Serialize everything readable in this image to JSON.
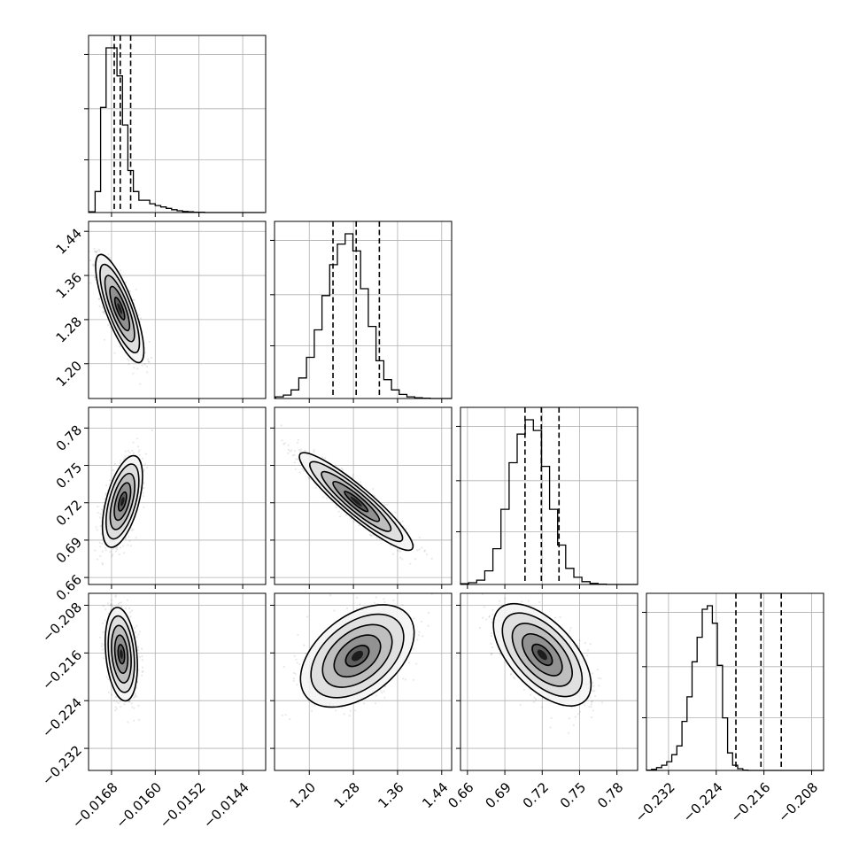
{
  "chart_data": {
    "type": "scatter",
    "kind": "corner-plot",
    "grid": true,
    "parameters": [
      {
        "ticks": [
          -0.0168,
          -0.016,
          -0.0152,
          -0.0144
        ],
        "ticklabels": [
          "−0.0168",
          "−0.0160",
          "−0.0152",
          "−0.0144"
        ],
        "range": [
          -0.01722,
          -0.01398
        ]
      },
      {
        "ticks": [
          1.2,
          1.28,
          1.36,
          1.44
        ],
        "ticklabels": [
          "1.20",
          "1.28",
          "1.36",
          "1.44"
        ],
        "range": [
          1.137,
          1.458
        ]
      },
      {
        "ticks": [
          0.66,
          0.69,
          0.72,
          0.75,
          0.78
        ],
        "ticklabels": [
          "0.66",
          "0.69",
          "0.72",
          "0.75",
          "0.78"
        ],
        "range": [
          0.6544,
          0.7966
        ]
      },
      {
        "ticks": [
          -0.232,
          -0.224,
          -0.216,
          -0.208
        ],
        "ticklabels": [
          "−0.232",
          "−0.224",
          "−0.216",
          "−0.208"
        ],
        "range": [
          -0.2357,
          -0.206
        ]
      }
    ],
    "histograms": [
      {
        "quantiles": [
          -0.01675,
          -0.01664,
          -0.01645
        ],
        "bins_start": -0.0172,
        "bin_width": 0.0001,
        "counts": [
          2,
          60,
          300,
          470,
          470,
          390,
          250,
          120,
          60,
          35,
          35,
          25,
          20,
          16,
          12,
          8,
          5,
          3,
          2,
          1,
          1,
          0,
          0,
          0,
          0,
          0,
          0,
          0,
          0,
          0,
          0,
          0
        ]
      },
      {
        "quantiles": [
          1.243,
          1.285,
          1.327
        ],
        "bins_start": 1.139,
        "bin_width": 0.014,
        "counts": [
          5,
          10,
          25,
          60,
          120,
          200,
          300,
          390,
          450,
          480,
          430,
          320,
          210,
          110,
          55,
          25,
          12,
          5,
          2,
          1,
          0,
          0,
          0
        ]
      },
      {
        "quantiles": [
          0.7062,
          0.7193,
          0.7335
        ],
        "bins_start": 0.6544,
        "bin_width": 0.0065,
        "counts": [
          2,
          5,
          12,
          38,
          100,
          210,
          340,
          420,
          460,
          430,
          330,
          210,
          110,
          45,
          20,
          8,
          3,
          1,
          0,
          0,
          0,
          0
        ]
      },
      {
        "quantiles": [
          -0.2207,
          -0.2165,
          -0.2131
        ],
        "bins_start": -0.2357,
        "bin_width": 0.00085,
        "counts": [
          1,
          3,
          8,
          15,
          25,
          45,
          70,
          140,
          210,
          310,
          380,
          460,
          470,
          420,
          300,
          150,
          50,
          15,
          5,
          1,
          0,
          0,
          0,
          0,
          0,
          0,
          0,
          0,
          0,
          0,
          0,
          0,
          0,
          0,
          0
        ]
      }
    ],
    "pairs": [
      {
        "x": 0,
        "y": 1,
        "mean": [
          -0.01665,
          1.3
        ],
        "sd": [
          0.00018,
          0.04
        ],
        "rho": -0.78,
        "n": 1800
      },
      {
        "x": 0,
        "y": 2,
        "mean": [
          -0.0166,
          0.721
        ],
        "sd": [
          0.00015,
          0.015
        ],
        "rho": 0.55,
        "n": 1800
      },
      {
        "x": 1,
        "y": 2,
        "mean": [
          1.285,
          0.721
        ],
        "sd": [
          0.042,
          0.016
        ],
        "rho": -0.92,
        "n": 1800
      },
      {
        "x": 0,
        "y": 3,
        "mean": [
          -0.01662,
          -0.2162
        ],
        "sd": [
          0.00012,
          0.0032
        ],
        "rho": -0.25,
        "n": 1800
      },
      {
        "x": 1,
        "y": 3,
        "mean": [
          1.287,
          -0.2165
        ],
        "sd": [
          0.042,
          0.0035
        ],
        "rho": 0.45,
        "n": 1800
      },
      {
        "x": 2,
        "y": 3,
        "mean": [
          0.72,
          -0.2163
        ],
        "sd": [
          0.016,
          0.0035
        ],
        "rho": -0.58,
        "n": 1800
      }
    ]
  }
}
